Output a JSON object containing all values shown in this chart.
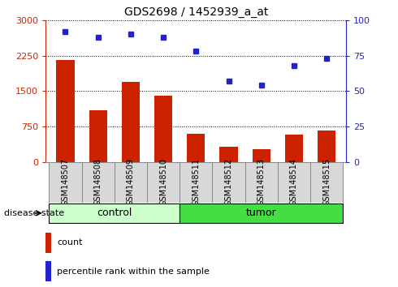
{
  "title": "GDS2698 / 1452939_a_at",
  "samples": [
    "GSM148507",
    "GSM148508",
    "GSM148509",
    "GSM148510",
    "GSM148511",
    "GSM148512",
    "GSM148513",
    "GSM148514",
    "GSM148515"
  ],
  "counts": [
    2150,
    1100,
    1700,
    1400,
    600,
    330,
    270,
    580,
    660
  ],
  "percentiles": [
    92,
    88,
    90,
    88,
    78,
    57,
    54,
    68,
    73
  ],
  "bar_color": "#cc2200",
  "dot_color": "#2222cc",
  "left_ylim": [
    0,
    3000
  ],
  "right_ylim": [
    0,
    100
  ],
  "left_yticks": [
    0,
    750,
    1500,
    2250,
    3000
  ],
  "right_yticks": [
    0,
    25,
    50,
    75,
    100
  ],
  "n_control": 4,
  "n_tumor": 5,
  "control_color": "#ccffcc",
  "tumor_color": "#44dd44",
  "control_label": "control",
  "tumor_label": "tumor",
  "disease_state_label": "disease state",
  "legend_count_label": "count",
  "legend_pct_label": "percentile rank within the sample",
  "tick_bg_color": "#d8d8d8",
  "tick_border_color": "#888888"
}
